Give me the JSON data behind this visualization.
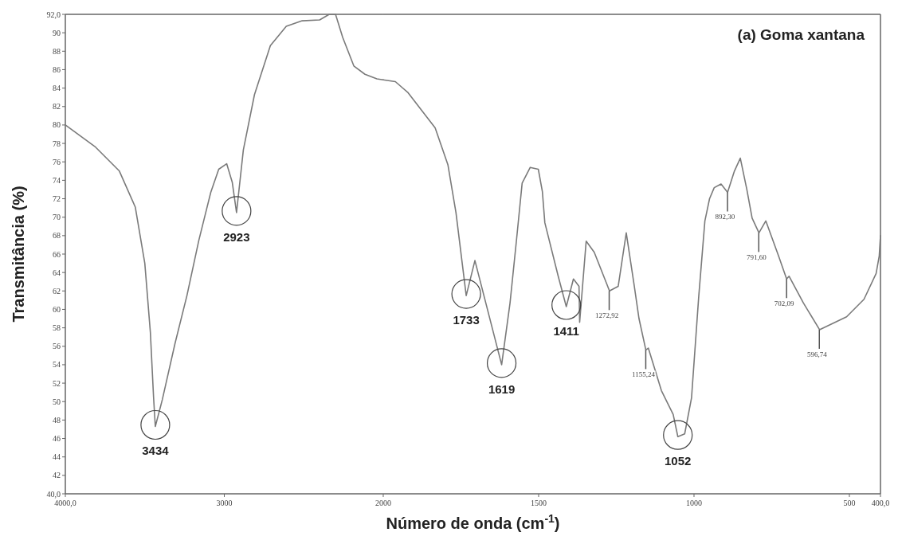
{
  "chart_data": [
    {
      "type": "line",
      "xlabel": null,
      "ylabel": "Transmitância (%)",
      "series": [
        {
          "color": "#7a7a7a",
          "x": [
            4000,
            3810,
            3660,
            3560,
            3500,
            3465,
            3445,
            3434,
            3390,
            3310,
            3235,
            3160,
            3085,
            3035,
            2985,
            2950,
            2923,
            2880,
            2810,
            2710,
            2610,
            2510,
            2400,
            2340,
            2300,
            2255,
            2185,
            2115,
            2040,
            2000
          ],
          "values": [
            80,
            77.6,
            75.0,
            71.1,
            65,
            57.5,
            50.5,
            47.3,
            50.2,
            56.3,
            61.5,
            67.5,
            72.7,
            75.2,
            75.8,
            73.8,
            70.5,
            77.3,
            83.3,
            88.6,
            90.7,
            91.3,
            91.4,
            92,
            92,
            89.5,
            86.4,
            85.5,
            85.0,
            84.9
          ]
        }
      ],
      "xlim": [
        4000,
        2000
      ],
      "ylim": [
        40,
        92
      ],
      "xticks": [
        {
          "value": 4000,
          "label": "4000,0"
        },
        3000,
        2000
      ],
      "yticks": [
        {
          "value": 40,
          "label": "40,0"
        },
        42,
        44,
        46,
        48,
        50,
        52,
        54,
        56,
        58,
        60,
        62,
        64,
        66,
        68,
        70,
        72,
        74,
        76,
        78,
        80,
        82,
        84,
        86,
        88,
        90,
        {
          "value": 92,
          "label": "92,0"
        }
      ],
      "annotations": [
        {
          "text": "3434",
          "x": 3434,
          "y": 47.3
        },
        {
          "text": "2923",
          "x": 2923,
          "y": 70.5
        }
      ],
      "line_style": "solid",
      "marker": "none",
      "grid": false
    },
    {
      "type": "line",
      "title": "(a) Goma xantana",
      "xlabel": "Número de onda (cm$^{-1}$)",
      "series": [
        {
          "color": "#7a7a7a",
          "x": [
            2000,
            1961,
            1920,
            1833,
            1792,
            1766,
            1733,
            1705,
            1619,
            1592,
            1571,
            1553,
            1527,
            1501,
            1488,
            1480,
            1437,
            1411,
            1388,
            1370,
            1368,
            1347,
            1321,
            1280,
            1272,
            1244,
            1218,
            1192,
            1177,
            1155,
            1147,
            1105,
            1067,
            1052,
            1030,
            1008,
            985,
            965,
            950,
            935,
            913,
            892,
            870,
            851,
            830,
            813,
            791,
            769,
            728,
            702,
            694,
            648,
            596,
            509,
            453,
            414,
            404,
            400
          ],
          "values": [
            84.9,
            84.7,
            83.5,
            79.7,
            75.7,
            70.5,
            61.5,
            65.3,
            54.0,
            60.7,
            67.6,
            73.7,
            75.4,
            75.2,
            72.8,
            69.4,
            63.6,
            60.3,
            63.3,
            62.5,
            58.6,
            67.4,
            66.2,
            62.7,
            62.0,
            62.5,
            68.3,
            62.5,
            59.0,
            55.6,
            55.8,
            51.2,
            48.6,
            46.2,
            46.5,
            50.4,
            61.3,
            69.6,
            72.0,
            73.2,
            73.6,
            72.7,
            75.0,
            76.4,
            73.0,
            69.9,
            68.3,
            69.6,
            65.8,
            63.3,
            63.6,
            60.7,
            57.8,
            59.2,
            61.1,
            63.9,
            65.8,
            68.0
          ]
        }
      ],
      "xlim": [
        2000,
        400
      ],
      "ylim": [
        40,
        92
      ],
      "xticks": [
        1500,
        1000,
        500,
        {
          "value": 400,
          "label": "400,0"
        }
      ],
      "tick_labels": "x",
      "annotations": [
        {
          "text": "1733",
          "x": 1733,
          "y": 61.5
        },
        {
          "text": "1619",
          "x": 1619,
          "y": 54.0
        },
        {
          "text": "1411",
          "x": 1411,
          "y": 60.3
        },
        {
          "text": "1052",
          "x": 1052,
          "y": 46.2
        },
        {
          "text": "1272,92",
          "x": 1272.92,
          "y": 62.0
        },
        {
          "text": "1155,24",
          "x": 1155.24,
          "y": 55.6
        },
        {
          "text": "892,30",
          "x": 892.3,
          "y": 72.7
        },
        {
          "text": "791,60",
          "x": 791.6,
          "y": 68.3
        },
        {
          "text": "702,09",
          "x": 702.09,
          "y": 63.3
        },
        {
          "text": "596,74",
          "x": 596.74,
          "y": 57.8
        }
      ],
      "line_style": "solid",
      "marker": "none",
      "grid": false
    }
  ]
}
